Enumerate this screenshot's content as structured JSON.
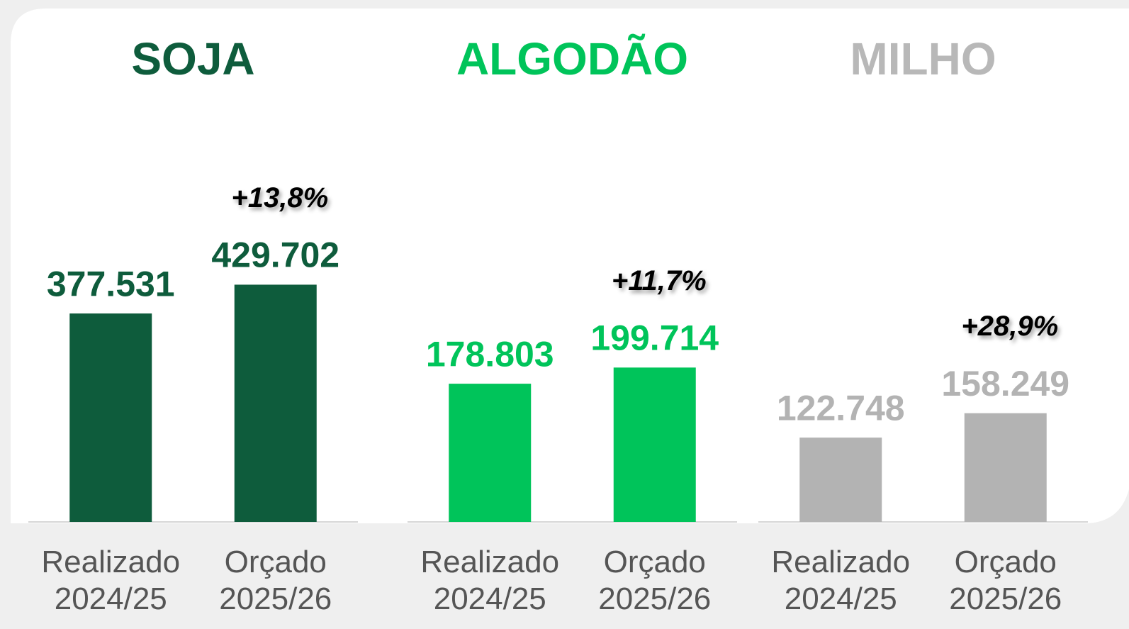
{
  "chart_data": [
    {
      "type": "bar",
      "title": "SOJA",
      "color": "#0e5c3c",
      "title_color": "#0e5c3c",
      "categories": [
        "Realizado 2024/25",
        "Orçado 2025/26"
      ],
      "values": [
        377531,
        429702
      ],
      "value_labels": [
        "377.531",
        "429.702"
      ],
      "annotation": "+13,8%",
      "ylim": [
        0,
        560000
      ]
    },
    {
      "type": "bar",
      "title": "ALGODÃO",
      "color": "#00c45a",
      "title_color": "#00c45a",
      "categories": [
        "Realizado 2024/25",
        "Orçado 2025/26"
      ],
      "values": [
        178803,
        199714
      ],
      "value_labels": [
        "178.803",
        "199.714"
      ],
      "annotation": "+11,7%",
      "ylim": [
        0,
        400000
      ]
    },
    {
      "type": "bar",
      "title": "MILHO",
      "color": "#b3b3b3",
      "title_color": "#b8b8b8",
      "categories": [
        "Realizado 2024/25",
        "Orçado 2025/26"
      ],
      "values": [
        122748,
        158249
      ],
      "value_labels": [
        "122.748",
        "158.249"
      ],
      "annotation": "+28,9%",
      "ylim": [
        0,
        450000
      ]
    }
  ]
}
